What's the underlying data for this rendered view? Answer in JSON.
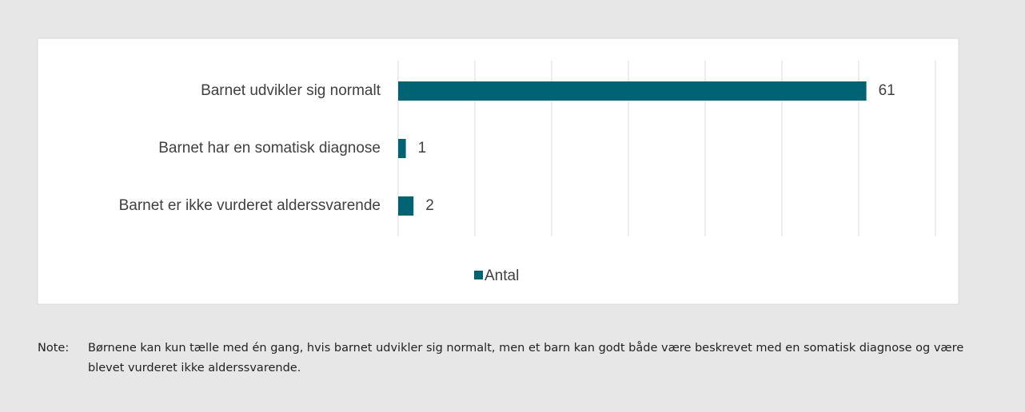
{
  "chart_data": {
    "type": "bar",
    "orientation": "horizontal",
    "categories": [
      "Barnet udvikler sig normalt",
      "Barnet har en somatisk diagnose",
      "Barnet er ikke vurderet alderssvarende"
    ],
    "series": [
      {
        "name": "Antal",
        "color": "#006373",
        "values": [
          61,
          1,
          2
        ]
      }
    ],
    "xlim": [
      0,
      70
    ],
    "xticks": [
      0,
      10,
      20,
      30,
      40,
      50,
      60,
      70
    ],
    "grid": true,
    "legend": "bottom"
  },
  "note": {
    "label": "Note:",
    "text": "Børnene kan kun tælle med én gang, hvis barnet udvikler sig normalt, men et barn kan godt både være beskrevet med en somatisk diagnose og være blevet vurderet ikke alderssvarende."
  }
}
